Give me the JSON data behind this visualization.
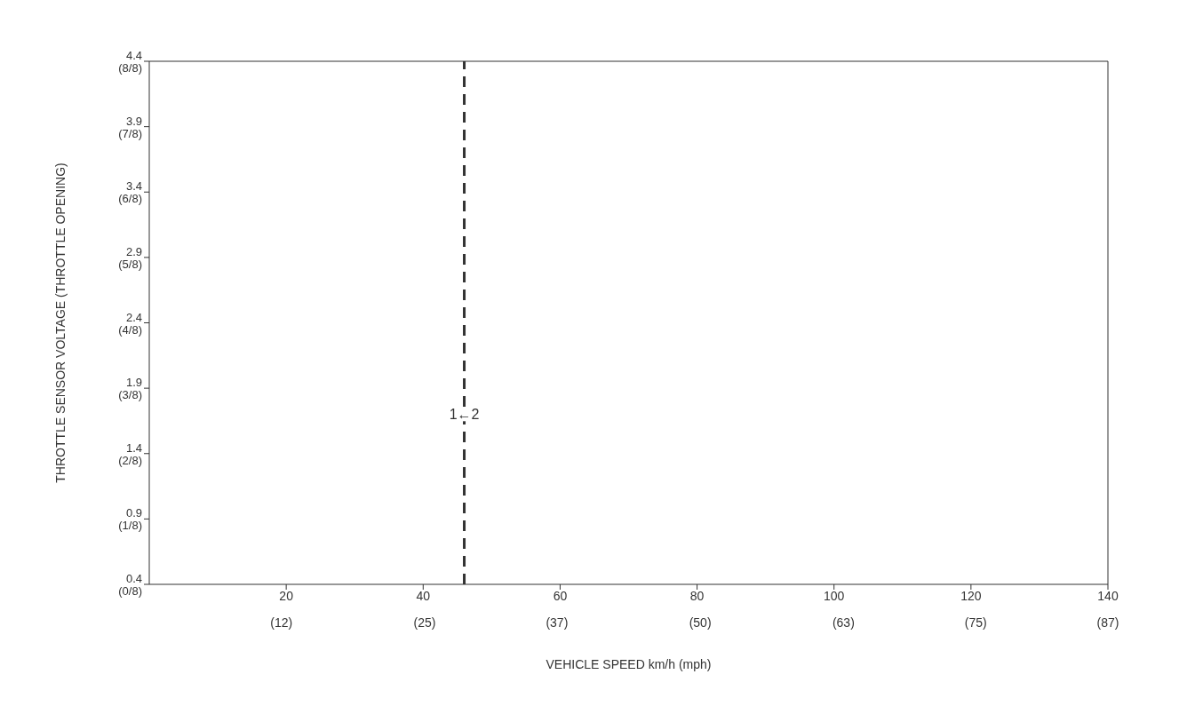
{
  "chart_data": {
    "type": "line",
    "xlabel": "VEHICLE SPEED km/h (mph)",
    "ylabel": "THROTTLE SENSOR VOLTAGE (THROTTLE OPENING)",
    "xlim": [
      0,
      140
    ],
    "xticks": [
      20,
      40,
      60,
      80,
      100,
      120,
      140
    ],
    "x2lim": [
      0,
      87
    ],
    "x2ticks": [
      {
        "value": 12,
        "label": "(12)"
      },
      {
        "value": 25,
        "label": "(25)"
      },
      {
        "value": 37,
        "label": "(37)"
      },
      {
        "value": 50,
        "label": "(50)"
      },
      {
        "value": 63,
        "label": "(63)"
      },
      {
        "value": 75,
        "label": "(75)"
      },
      {
        "value": 87,
        "label": "(87)"
      }
    ],
    "ylim": [
      0.4,
      4.4
    ],
    "yticks": [
      0.4,
      0.9,
      1.4,
      1.9,
      2.4,
      2.9,
      3.4,
      3.9,
      4.4
    ],
    "ref_lines": [
      {
        "axis": "x",
        "value": 46,
        "color": "#333333",
        "line_style": "dashed"
      }
    ],
    "annotations": [
      {
        "text": "1←2",
        "x": 46,
        "y": 1.7
      },
      "(0/8)",
      "(1/8)",
      "(2/8)",
      "(3/8)",
      "(4/8)",
      "(5/8)",
      "(6/8)",
      "(7/8)",
      "(8/8)"
    ]
  }
}
